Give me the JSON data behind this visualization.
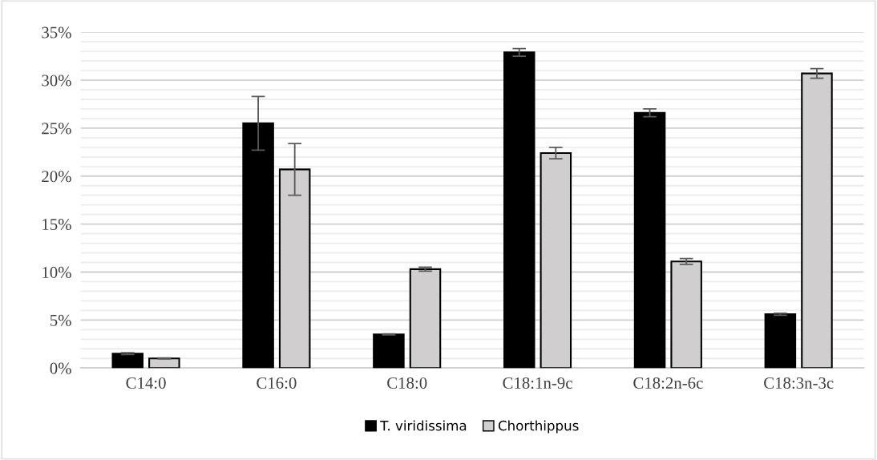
{
  "chart_data": {
    "type": "bar",
    "categories": [
      "C14:0",
      "C16:0",
      "C18:0",
      "C18:1n-9c",
      "C18:2n-6c",
      "C18:3n-3c"
    ],
    "series": [
      {
        "name": "T. viridissima",
        "color": "#000000",
        "values": [
          1.5,
          25.5,
          3.5,
          32.9,
          26.6,
          5.6
        ],
        "errors": [
          0.1,
          2.8,
          0.05,
          0.4,
          0.4,
          0.1
        ]
      },
      {
        "name": "Chorthippus",
        "color": "#d0cecf",
        "values": [
          1.0,
          20.7,
          10.3,
          22.4,
          11.1,
          30.7
        ],
        "errors": [
          0.05,
          2.7,
          0.2,
          0.6,
          0.3,
          0.5
        ]
      }
    ],
    "ylim": [
      0,
      35
    ],
    "yticks": [
      {
        "value": 0,
        "label": "0%"
      },
      {
        "value": 1,
        "label": null
      },
      {
        "value": 2,
        "label": null
      },
      {
        "value": 3,
        "label": null
      },
      {
        "value": 4,
        "label": null
      },
      {
        "value": 5,
        "label": "5%"
      },
      {
        "value": 6,
        "label": null
      },
      {
        "value": 7,
        "label": null
      },
      {
        "value": 8,
        "label": null
      },
      {
        "value": 9,
        "label": null
      },
      {
        "value": 10,
        "label": "10%"
      },
      {
        "value": 11,
        "label": null
      },
      {
        "value": 12,
        "label": null
      },
      {
        "value": 13,
        "label": null
      },
      {
        "value": 14,
        "label": null
      },
      {
        "value": 15,
        "label": "15%"
      },
      {
        "value": 16,
        "label": null
      },
      {
        "value": 17,
        "label": null
      },
      {
        "value": 18,
        "label": null
      },
      {
        "value": 19,
        "label": null
      },
      {
        "value": 20,
        "label": "20%"
      },
      {
        "value": 21,
        "label": null
      },
      {
        "value": 22,
        "label": null
      },
      {
        "value": 23,
        "label": null
      },
      {
        "value": 24,
        "label": null
      },
      {
        "value": 25,
        "label": "25%"
      },
      {
        "value": 26,
        "label": null
      },
      {
        "value": 27,
        "label": null
      },
      {
        "value": 28,
        "label": null
      },
      {
        "value": 29,
        "label": null
      },
      {
        "value": 30,
        "label": "30%"
      },
      {
        "value": 31,
        "label": null
      },
      {
        "value": 32,
        "label": null
      },
      {
        "value": 33,
        "label": null
      },
      {
        "value": 34,
        "label": null
      },
      {
        "value": 35,
        "label": "35%"
      }
    ],
    "grid": "y",
    "legend": "bottom"
  }
}
